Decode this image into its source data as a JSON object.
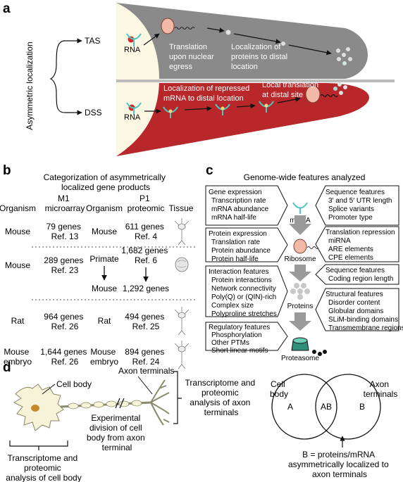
{
  "panel_a": {
    "label": "a",
    "side_title": "Asymmetric localization",
    "tas": "TAS",
    "dss": "DSS",
    "rna_top": "RNA",
    "rna_bottom": "RNA",
    "translation": [
      "Translation",
      "upon nuclear",
      "egress"
    ],
    "localization_proteins": [
      "Localization of",
      "proteins to distal",
      "location"
    ],
    "localization_mrna": [
      "Localization of repressed",
      "mRNA to distal location"
    ],
    "local_translation": [
      "Local translation",
      "at distal site"
    ]
  },
  "panel_b": {
    "label": "b",
    "title": [
      "Categorization of asymmetrically",
      "localized gene products"
    ],
    "headers": {
      "organism1": "Organism",
      "m1": [
        "M1",
        "microarray"
      ],
      "organism2": "Organism",
      "p1": [
        "P1",
        "proteomic"
      ],
      "tissue": "Tissue"
    },
    "rows": [
      {
        "organism": [
          "Mouse"
        ],
        "m1": [
          "79 genes",
          "Ref. 13"
        ],
        "organism2": [
          "Mouse"
        ],
        "p1": [
          "611 genes",
          "Ref. 4"
        ]
      },
      {
        "organism": [
          "Mouse"
        ],
        "m1": [
          "289 genes",
          "Ref. 23"
        ],
        "organism2": [
          "Primate"
        ],
        "p1": [
          "1,682 genes",
          "Ref. 6"
        ],
        "organism2_b": "Mouse",
        "p1_b": "1,292 genes"
      },
      {
        "organism": [
          "Rat"
        ],
        "m1": [
          "964 genes",
          "Ref. 26"
        ],
        "organism2": [
          "Rat"
        ],
        "p1": [
          "494 genes",
          "Ref. 25"
        ]
      },
      {
        "organism": [
          "Mouse",
          "embryo"
        ],
        "m1": [
          "1,644 genes",
          "Ref. 26"
        ],
        "organism2": [
          "Mouse",
          "embryo"
        ],
        "p1": [
          "894 genes",
          "Ref. 24"
        ]
      }
    ]
  },
  "panel_c": {
    "label": "c",
    "title": "Genome-wide features analyzed",
    "left_boxes": [
      [
        "Gene expression",
        "Transcription rate",
        "mRNA abundance",
        "mRNA half-life"
      ],
      [
        "Protein expression",
        "Translation rate",
        "Protein abundance",
        "Protein half-life"
      ],
      [
        "Interaction features",
        "Protein interactions",
        "Network connectivity",
        "Poly(Q) or (QIN)-rich",
        "Complex size",
        "Polyproline stretches"
      ],
      [
        "Regulatory features",
        "Phosphorylation",
        "Other PTMs",
        "Short linear motifs"
      ]
    ],
    "right_boxes": [
      [
        "Sequence features",
        "3′ and 5′ UTR length",
        "Splice variants",
        "Promoter type"
      ],
      [
        "Translation repression",
        "miRNA",
        "ARE elements",
        "CPE elements"
      ],
      [
        "Sequence features",
        "Coding region length"
      ],
      [
        "Structural features",
        "Disorder content",
        "Globular domains",
        "SLiM-binding domains",
        "Transmembrane regions"
      ]
    ],
    "center_labels": [
      "mRNA",
      "Ribosome",
      "Proteins",
      "Proteasome"
    ]
  },
  "panel_d": {
    "label": "d",
    "cell_body": "Cell body",
    "axon_terminals": "Axon terminals",
    "experimental": [
      "Experimental",
      "division of cell",
      "body from axon",
      "terminal"
    ],
    "transcriptome_axon": [
      "Transcriptome and",
      "proteomic",
      "analysis of axon",
      "terminals"
    ],
    "transcriptome_cell": [
      "Transcriptome and",
      "proteomic",
      "analysis of cell body"
    ],
    "venn": {
      "left_title": [
        "Cell",
        "body"
      ],
      "right_title": [
        "Axon",
        "terminals"
      ],
      "a": "A",
      "ab": "AB",
      "b": "B",
      "note": [
        "B = proteins/mRNA",
        "asymmetrically localized to",
        "axon terminals"
      ]
    }
  },
  "colors": {
    "tas_gray": "#8a8a8a",
    "dss_red": "#b8282b",
    "nucleus": "#fbf7e2",
    "mrna": "#4fc6c0",
    "ribosome": "#f2b9a6",
    "arrow_gray": "#9a9a9a",
    "cell_body": "#f7f3d8",
    "soma_spot": "#c48a2c"
  }
}
